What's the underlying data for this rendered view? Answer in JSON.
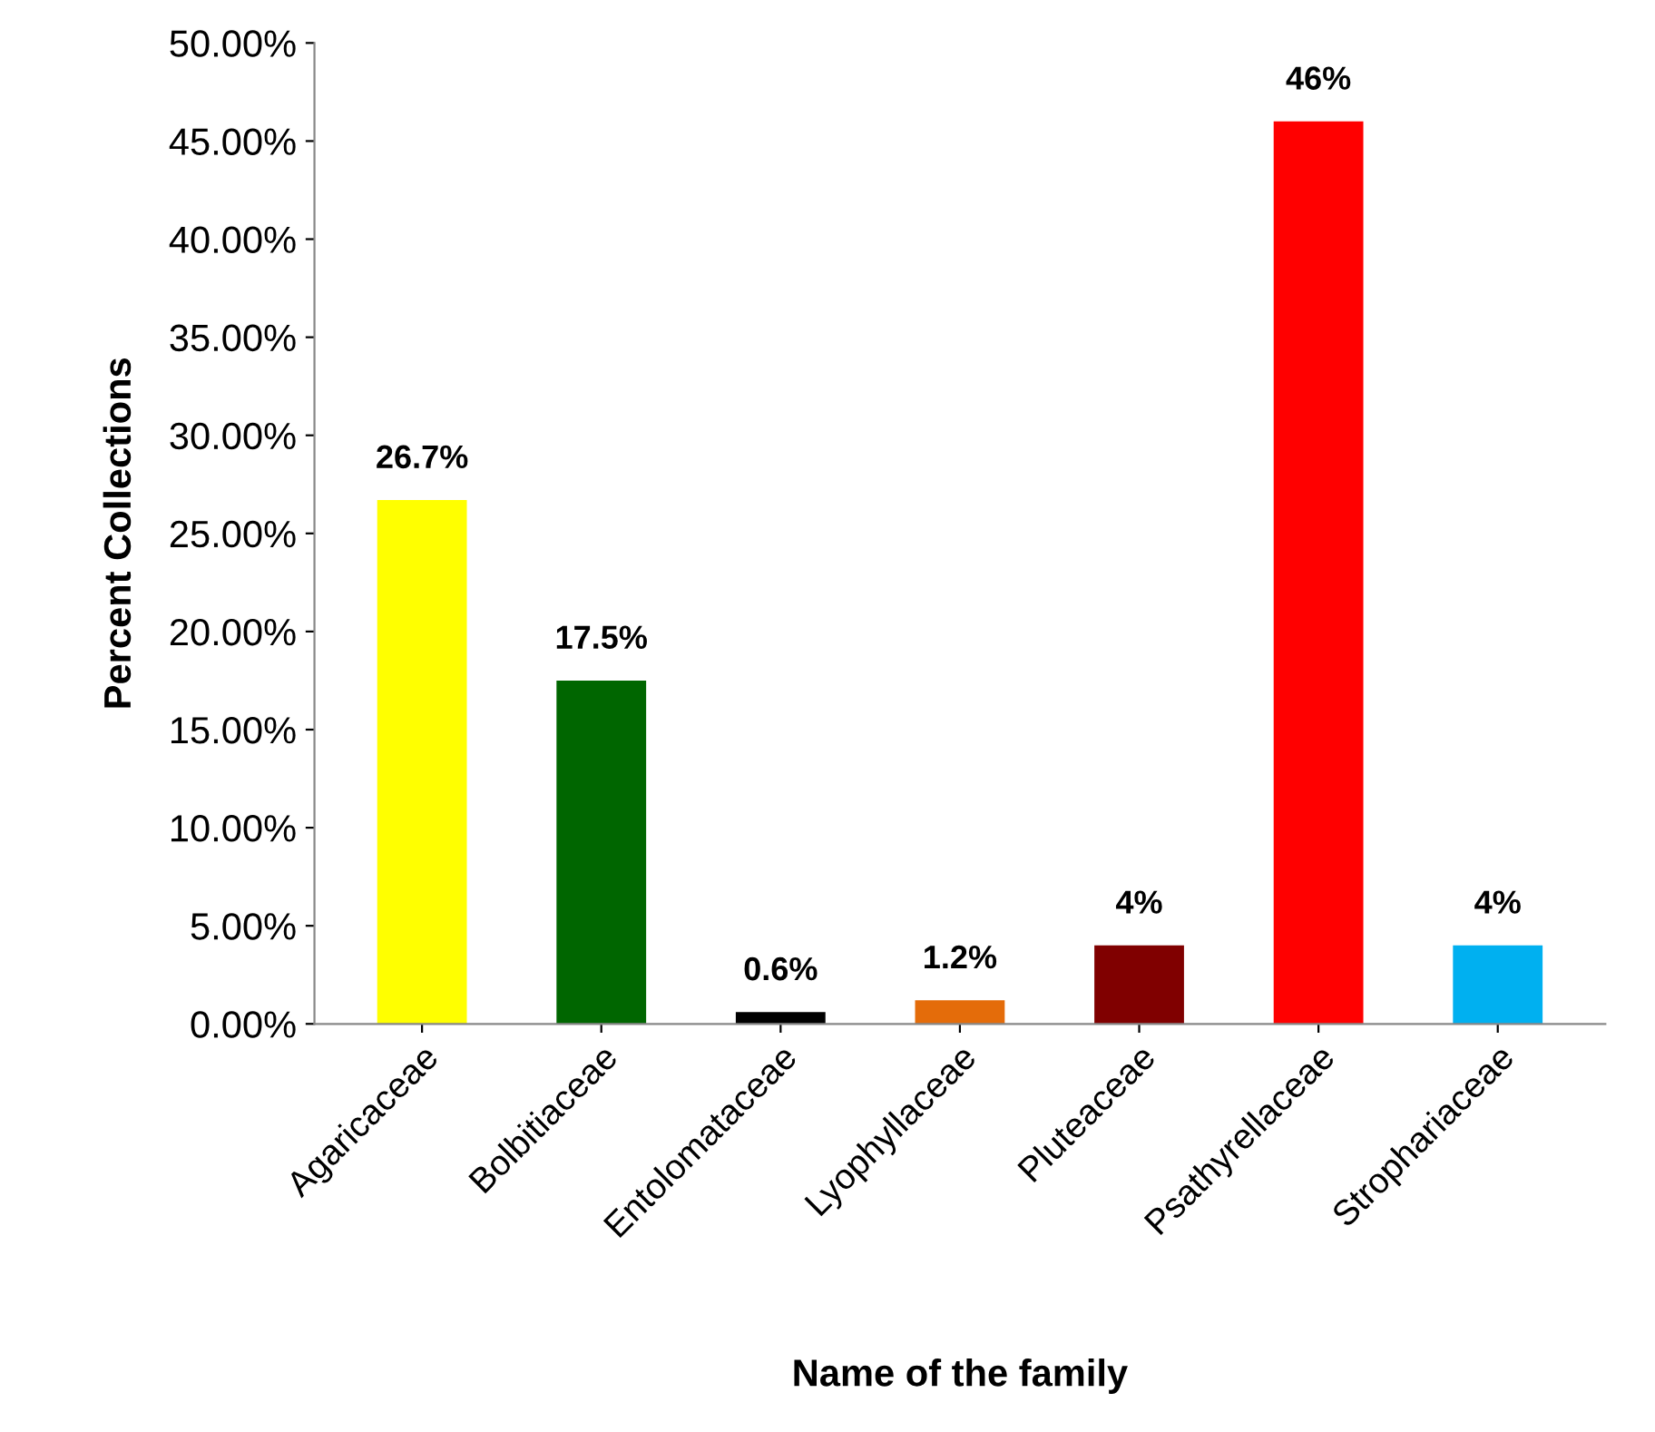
{
  "chart_data": {
    "type": "bar",
    "xlabel": "Name of the family",
    "ylabel": "Percent Collections",
    "categories": [
      "Agaricaceae",
      "Bolbitiaceae",
      "Entolomataceae",
      "Lyophyllaceae",
      "Pluteaceae",
      "Psathyrellaceae",
      "Strophariaceae"
    ],
    "values": [
      26.7,
      17.5,
      0.6,
      1.2,
      4,
      46,
      4
    ],
    "colors": [
      "#ffff00",
      "#006600",
      "#000000",
      "#e46c0a",
      "#800000",
      "#ff0000",
      "#00b0f0"
    ],
    "value_labels": [
      "26.7%",
      "17.5%",
      "0.6%",
      "1.2%",
      "4%",
      "46%",
      "4%"
    ],
    "ylim": [
      0,
      50
    ],
    "yticks": [
      {
        "value": 0,
        "label": "0.00%"
      },
      {
        "value": 5,
        "label": "5.00%"
      },
      {
        "value": 10,
        "label": "10.00%"
      },
      {
        "value": 15,
        "label": "15.00%"
      },
      {
        "value": 20,
        "label": "20.00%"
      },
      {
        "value": 25,
        "label": "25.00%"
      },
      {
        "value": 30,
        "label": "30.00%"
      },
      {
        "value": 35,
        "label": "35.00%"
      },
      {
        "value": 40,
        "label": "40.00%"
      },
      {
        "value": 45,
        "label": "45.00%"
      },
      {
        "value": 50,
        "label": "50.00%"
      }
    ],
    "grid": false
  }
}
